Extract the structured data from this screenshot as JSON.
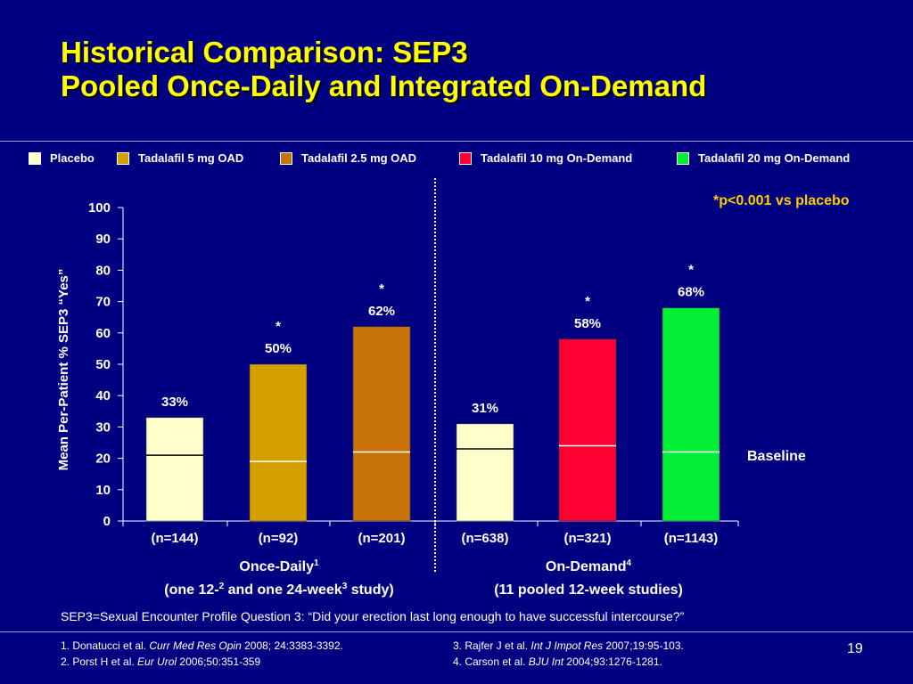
{
  "slide": {
    "title_line1": "Historical Comparison: SEP3",
    "title_line2": "Pooled Once-Daily and Integrated On-Demand",
    "p_note": "*p<0.001 vs placebo",
    "footnote": "SEP3=Sexual Encounter Profile Question 3: “Did your erection last long enough to have successful intercourse?”",
    "page_number": "19",
    "references": [
      {
        "pre": "1. Donatucci et al. ",
        "journal": "Curr Med Res Opin",
        "post": " 2008; 24:3383-3392."
      },
      {
        "pre": "2. Porst H et al. ",
        "journal": "Eur Urol",
        "post": " 2006;50:351-359"
      },
      {
        "pre": "3. Rajfer J et al. ",
        "journal": "Int J Impot Res",
        "post": " 2007;19:95-103."
      },
      {
        "pre": "4. Carson et al. ",
        "journal": "BJU Int",
        "post": " 2004;93:1276-1281."
      }
    ]
  },
  "legend": [
    {
      "label": "Placebo",
      "color": "#ffffcc"
    },
    {
      "label": "Tadalafil 5 mg OAD",
      "color": "#d4a000"
    },
    {
      "label": "Tadalafil 2.5 mg OAD",
      "color": "#c8730a"
    },
    {
      "label": "Tadalafil 10 mg On-Demand",
      "color": "#ff0033"
    },
    {
      "label": "Tadalafil 20 mg On-Demand",
      "color": "#00ee33"
    }
  ],
  "chart_data": {
    "type": "bar",
    "ylabel": "Mean Per-Patient % SEP3 “Yes”",
    "ylim": [
      0,
      100
    ],
    "yticks": [
      0,
      10,
      20,
      30,
      40,
      50,
      60,
      70,
      80,
      90,
      100
    ],
    "grid": false,
    "baseline_label": "Baseline",
    "bars": [
      {
        "category": "(n=144)",
        "series": "Placebo",
        "value": 33,
        "label": "33%",
        "significant": false,
        "baseline": 21,
        "color": "#ffffcc",
        "baseline_color": "#000000"
      },
      {
        "category": "(n=92)",
        "series": "Tadalafil 5 mg OAD",
        "value": 50,
        "label": "50%",
        "significant": true,
        "baseline": 19,
        "color": "#d4a000",
        "baseline_color": "#ffffff"
      },
      {
        "category": "(n=201)",
        "series": "Tadalafil 2.5 mg OAD",
        "value": 62,
        "label": "62%",
        "significant": true,
        "baseline": 22,
        "color": "#c8730a",
        "baseline_color": "#ffffff"
      },
      {
        "category": "(n=638)",
        "series": "Placebo",
        "value": 31,
        "label": "31%",
        "significant": false,
        "baseline": 23,
        "color": "#ffffcc",
        "baseline_color": "#000000"
      },
      {
        "category": "(n=321)",
        "series": "Tadalafil 10 mg On-Demand",
        "value": 58,
        "label": "58%",
        "significant": true,
        "baseline": 24,
        "color": "#ff0033",
        "baseline_color": "#ffffff"
      },
      {
        "category": "(n=1143)",
        "series": "Tadalafil 20 mg On-Demand",
        "value": 68,
        "label": "68%",
        "significant": true,
        "baseline": 22,
        "color": "#00ee33",
        "baseline_color": "#ffffff"
      }
    ],
    "groups": [
      {
        "name": "Once-Daily",
        "name_sup": "1",
        "sub_pre": "(one 12-",
        "sub_sup1": "2",
        "sub_mid": " and one 24-week",
        "sub_sup2": "3",
        "sub_post": " study)"
      },
      {
        "name": "On-Demand",
        "name_sup": "4",
        "sub_pre": "(11 pooled 12-week studies)",
        "sub_sup1": "",
        "sub_mid": "",
        "sub_sup2": "",
        "sub_post": ""
      }
    ]
  }
}
